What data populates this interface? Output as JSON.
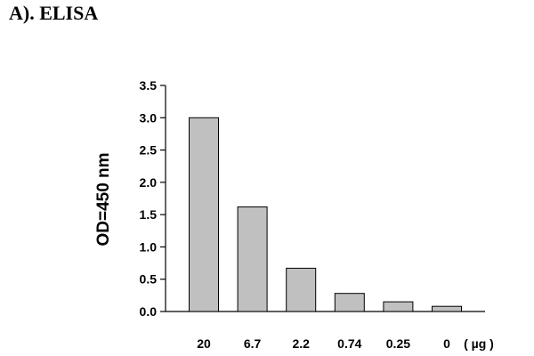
{
  "panel_title": "A). ELISA",
  "chart_data": {
    "type": "bar",
    "title": "ELISA",
    "xlabel": "",
    "ylabel": "OD=450 nm",
    "unit_label": "( µg )",
    "categories": [
      "20",
      "6.7",
      "2.2",
      "0.74",
      "0.25",
      "0"
    ],
    "values": [
      3.0,
      1.62,
      0.67,
      0.28,
      0.15,
      0.08
    ],
    "ylim": [
      0,
      3.5
    ],
    "yticks": [
      "0.0",
      "0.5",
      "1.0",
      "1.5",
      "2.0",
      "2.5",
      "3.0",
      "3.5"
    ],
    "bar_color": "#c0c0c0",
    "grid": false,
    "legend": "none"
  }
}
